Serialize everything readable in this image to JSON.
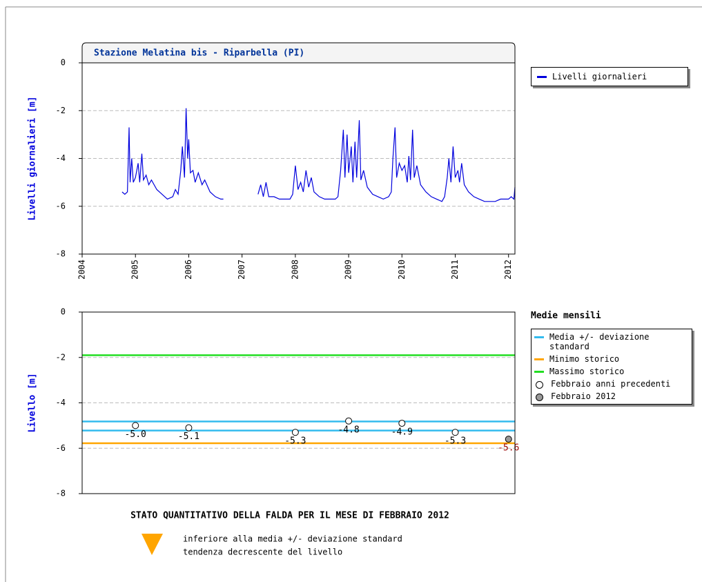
{
  "chart_data": [
    {
      "type": "line",
      "title": "Stazione Melatina bis - Riparbella (PI)",
      "ylabel": "Livelli giornalieri [m]",
      "xlim": [
        2004,
        2012.12
      ],
      "xticks": [
        2004,
        2005,
        2006,
        2007,
        2008,
        2009,
        2010,
        2011,
        2012
      ],
      "ylim": [
        -8,
        0
      ],
      "yticks": [
        0,
        -2,
        -4,
        -6,
        -8
      ],
      "grid": true,
      "series": [
        {
          "name": "Livelli giornalieri",
          "color": "#0000dd",
          "x": [
            2004.75,
            2004.8,
            2004.85,
            2004.88,
            2004.9,
            2004.93,
            2004.96,
            2005.0,
            2005.05,
            2005.08,
            2005.12,
            2005.15,
            2005.2,
            2005.25,
            2005.3,
            2005.4,
            2005.5,
            2005.6,
            2005.7,
            2005.75,
            2005.8,
            2005.85,
            2005.88,
            2005.92,
            2005.95,
            2005.98,
            2006.0,
            2006.03,
            2006.08,
            2006.12,
            2006.18,
            2006.25,
            2006.3,
            2006.4,
            2006.5,
            2006.6,
            2006.65,
            2006.9,
            2007.3,
            2007.35,
            2007.4,
            2007.45,
            2007.5,
            2007.6,
            2007.7,
            2007.8,
            2007.9,
            2007.95,
            2008.0,
            2008.05,
            2008.1,
            2008.15,
            2008.2,
            2008.25,
            2008.3,
            2008.35,
            2008.45,
            2008.55,
            2008.65,
            2008.75,
            2008.8,
            2008.85,
            2008.9,
            2008.93,
            2008.97,
            2009.0,
            2009.05,
            2009.08,
            2009.12,
            2009.15,
            2009.2,
            2009.23,
            2009.28,
            2009.35,
            2009.45,
            2009.55,
            2009.65,
            2009.75,
            2009.8,
            2009.83,
            2009.87,
            2009.9,
            2009.95,
            2010.0,
            2010.05,
            2010.1,
            2010.13,
            2010.16,
            2010.2,
            2010.23,
            2010.28,
            2010.35,
            2010.45,
            2010.55,
            2010.65,
            2010.75,
            2010.8,
            2010.85,
            2010.88,
            2010.92,
            2010.96,
            2011.0,
            2011.05,
            2011.08,
            2011.12,
            2011.17,
            2011.25,
            2011.35,
            2011.45,
            2011.55,
            2011.65,
            2011.75,
            2011.85,
            2011.95,
            2012.0,
            2012.05,
            2012.1,
            2012.12
          ],
          "values": [
            -5.4,
            -5.5,
            -5.4,
            -2.7,
            -5.0,
            -4.0,
            -5.0,
            -4.8,
            -4.2,
            -5.0,
            -3.8,
            -4.9,
            -4.7,
            -5.1,
            -4.9,
            -5.3,
            -5.5,
            -5.7,
            -5.6,
            -5.3,
            -5.5,
            -4.5,
            -3.5,
            -4.8,
            -1.9,
            -4.0,
            -3.2,
            -4.6,
            -4.5,
            -5.0,
            -4.6,
            -5.1,
            -4.9,
            -5.4,
            -5.6,
            -5.7,
            -5.7,
            null,
            -5.5,
            -5.1,
            -5.6,
            -5.0,
            -5.6,
            -5.6,
            -5.7,
            -5.7,
            -5.7,
            -5.5,
            -4.3,
            -5.3,
            -5.0,
            -5.4,
            -4.5,
            -5.2,
            -4.8,
            -5.4,
            -5.6,
            -5.7,
            -5.7,
            -5.7,
            -5.6,
            -4.5,
            -2.8,
            -4.8,
            -3.0,
            -4.6,
            -3.5,
            -5.0,
            -3.3,
            -4.8,
            -2.4,
            -4.9,
            -4.5,
            -5.2,
            -5.5,
            -5.6,
            -5.7,
            -5.6,
            -5.4,
            -4.0,
            -2.7,
            -4.8,
            -4.2,
            -4.5,
            -4.3,
            -5.0,
            -3.9,
            -4.9,
            -2.8,
            -4.8,
            -4.3,
            -5.1,
            -5.4,
            -5.6,
            -5.7,
            -5.8,
            -5.6,
            -4.8,
            -4.0,
            -5.0,
            -3.5,
            -4.8,
            -4.5,
            -5.0,
            -4.2,
            -5.1,
            -5.4,
            -5.6,
            -5.7,
            -5.8,
            -5.8,
            -5.8,
            -5.7,
            -5.7,
            -5.7,
            -5.6,
            -5.7,
            -5.2
          ]
        }
      ]
    },
    {
      "type": "levels",
      "ylabel": "Livello [m]",
      "legend_title": "Medie mensili",
      "xlim": [
        2004,
        2012.12
      ],
      "ylim": [
        -8,
        0
      ],
      "yticks": [
        0,
        -2,
        -4,
        -6,
        -8
      ],
      "grid": true,
      "lines": [
        {
          "name": "Media +/- deviazione standard",
          "color": "#33bbee",
          "values": [
            -4.82,
            -5.22
          ]
        },
        {
          "name": "Minimo storico",
          "color": "#ffa500",
          "values": [
            -5.78
          ]
        },
        {
          "name": "Massimo storico",
          "color": "#22dd22",
          "values": [
            -1.9
          ]
        }
      ],
      "points": [
        {
          "name": "Febbraio anni precedenti",
          "color": "#ffffff",
          "label_color": "#000000",
          "x": [
            2005,
            2006,
            2008,
            2009,
            2010,
            2011
          ],
          "values": [
            -5.0,
            -5.1,
            -5.3,
            -4.8,
            -4.9,
            -5.3
          ],
          "value_labels": [
            "-5.0",
            "-5.1",
            "-5.3",
            "-4.8",
            "-4.9",
            "-5.3"
          ]
        },
        {
          "name": "Febbraio 2012",
          "color": "#999999",
          "label_color": "#990000",
          "x": [
            2012
          ],
          "values": [
            -5.6
          ],
          "value_labels": [
            "-5.6"
          ]
        }
      ]
    }
  ],
  "status": {
    "title": "STATO QUANTITATIVO DELLA FALDA PER IL MESE DI FEBBRAIO 2012",
    "lines": [
      "inferiore alla media +/- deviazione standard",
      "tendenza decrescente del livello"
    ]
  }
}
